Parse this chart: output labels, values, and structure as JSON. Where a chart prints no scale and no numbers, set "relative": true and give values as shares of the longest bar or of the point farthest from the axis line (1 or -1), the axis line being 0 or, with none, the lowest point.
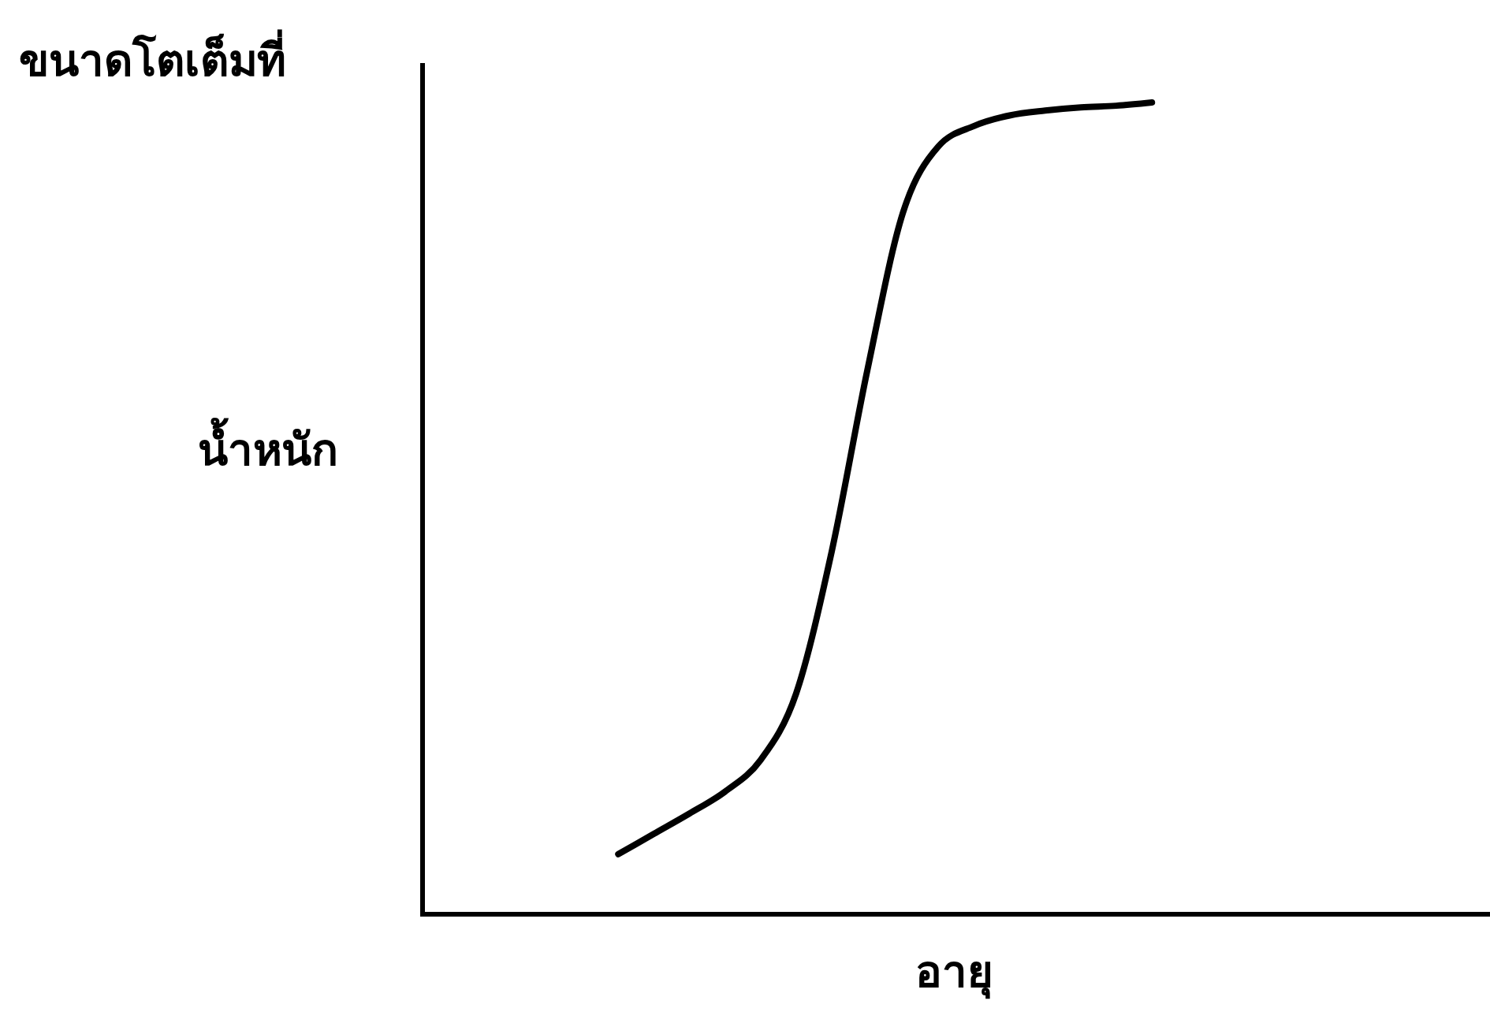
{
  "chart_data": {
    "type": "line",
    "relative": true,
    "xlabel": "อายุ",
    "ylabel": "น้ำหนัก",
    "annotations": [
      "ขนาดโตเต็มที่"
    ],
    "categories": [
      null,
      null,
      null,
      null,
      null,
      null,
      null,
      null,
      null,
      null,
      null,
      null,
      null,
      null,
      null,
      null,
      null,
      null,
      null,
      null,
      null,
      null,
      null,
      null,
      null,
      null,
      null,
      null,
      null,
      null
    ],
    "series": [
      {
        "color": "#000000",
        "values": [
          null,
          null,
          null,
          null,
          null,
          0.074,
          0.099,
          0.124,
          0.151,
          0.19,
          0.272,
          0.447,
          0.67,
          0.864,
          0.946,
          0.971,
          0.984,
          0.99,
          0.994,
          0.996,
          1,
          null,
          null,
          null,
          null,
          null,
          null,
          null,
          null,
          null
        ]
      }
    ]
  }
}
